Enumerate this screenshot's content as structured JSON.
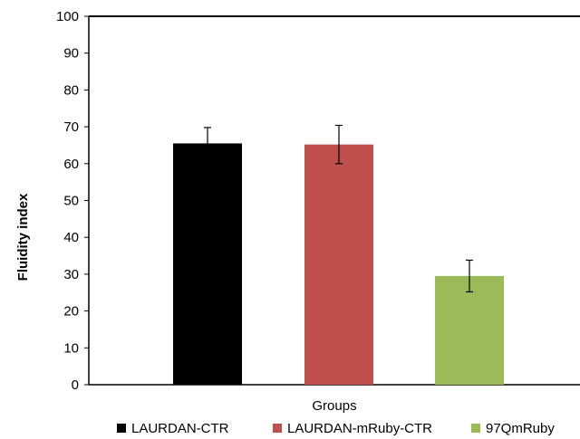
{
  "chart_data": {
    "type": "bar",
    "categories": [
      "LAURDAN-CTR",
      "LAURDAN-mRuby-CTR",
      "97QmRuby"
    ],
    "values": [
      65.5,
      65.2,
      29.5
    ],
    "errors": [
      4.3,
      5.2,
      4.3
    ],
    "colors": [
      "#000000",
      "#c0504d",
      "#9bbb59"
    ],
    "xlabel": "Groups",
    "ylabel": "Fluidity index",
    "ylim": [
      0,
      100
    ],
    "yticks": [
      "0",
      "10",
      "20",
      "30",
      "40",
      "50",
      "60",
      "70",
      "80",
      "90",
      "100"
    ],
    "grid": false,
    "legend_position": "bottom"
  }
}
